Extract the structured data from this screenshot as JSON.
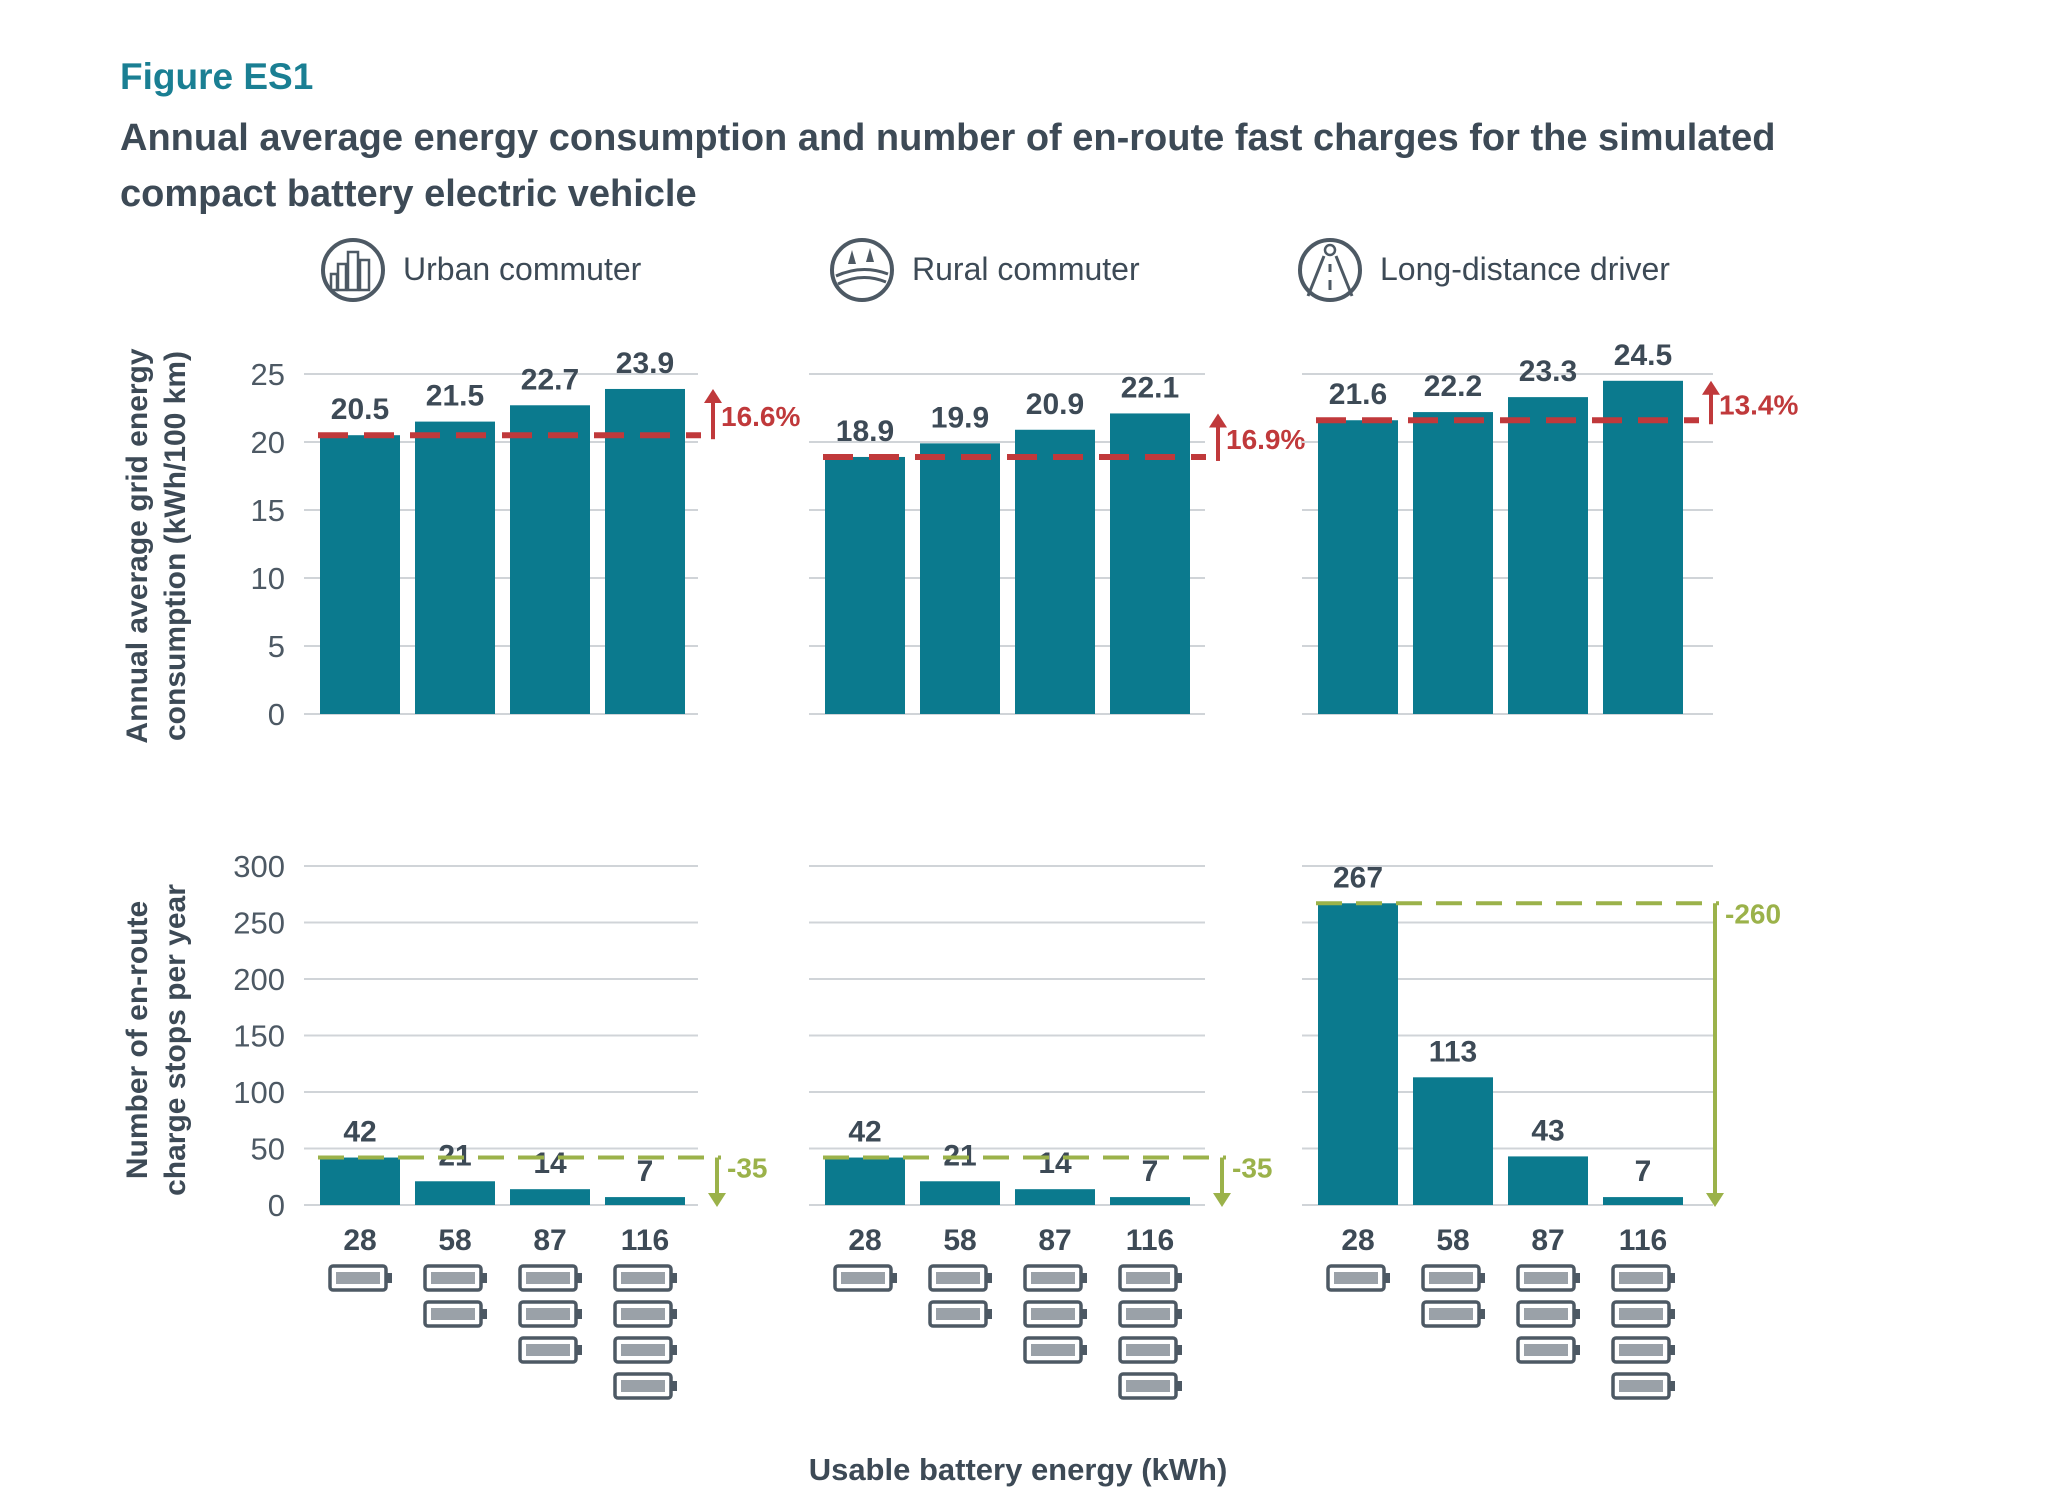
{
  "figure_label": "Figure ES1",
  "title": "Annual average energy consumption and number of en-route fast charges for the simulated compact battery electric vehicle",
  "colors": {
    "bar": "#0b7a8e",
    "label": "#3d4a56",
    "axis": "#4d5964",
    "grid": "#d0d4d8",
    "avg_line": "#c0393b",
    "delta_line": "#9bb24a",
    "battery": "#4d5964"
  },
  "chart_data": {
    "type": "bar",
    "xlabel": "Usable battery energy (kWh)",
    "categories": [
      "28",
      "58",
      "87",
      "116"
    ],
    "battery_icon_counts": [
      1,
      2,
      3,
      4
    ],
    "panel_titles": [
      "Urban commuter",
      "Rural commuter",
      "Long-distance driver"
    ],
    "panel_icons": [
      "city-buildings-icon",
      "rural-landscape-icon",
      "highway-road-icon"
    ],
    "energy": {
      "ylabel_lines": [
        "Annual average grid energy",
        "consumption (kWh/100 km)"
      ],
      "ylim": [
        0,
        25
      ],
      "ticks": [
        "0",
        "5",
        "10",
        "15",
        "20",
        "25"
      ],
      "series": [
        {
          "name": "Urban commuter",
          "values": [
            20.5,
            21.5,
            22.7,
            23.9
          ],
          "labels": [
            "20.5",
            "21.5",
            "22.7",
            "23.9"
          ],
          "change_label": "16.6%"
        },
        {
          "name": "Rural commuter",
          "values": [
            18.9,
            19.9,
            20.9,
            22.1
          ],
          "labels": [
            "18.9",
            "19.9",
            "20.9",
            "22.1"
          ],
          "change_label": "16.9%"
        },
        {
          "name": "Long-distance driver",
          "values": [
            21.6,
            22.2,
            23.3,
            24.5
          ],
          "labels": [
            "21.6",
            "22.2",
            "23.3",
            "24.5"
          ],
          "change_label": "13.4%"
        }
      ]
    },
    "charges": {
      "ylabel_lines": [
        "Number of en-route",
        "charge stops per year"
      ],
      "ylim": [
        0,
        300
      ],
      "ticks": [
        "0",
        "50",
        "100",
        "150",
        "200",
        "250",
        "300"
      ],
      "series": [
        {
          "name": "Urban commuter",
          "values": [
            42,
            21,
            14,
            7
          ],
          "labels": [
            "42",
            "21",
            "14",
            "7"
          ],
          "change_label": "-35"
        },
        {
          "name": "Rural commuter",
          "values": [
            42,
            21,
            14,
            7
          ],
          "labels": [
            "42",
            "21",
            "14",
            "7"
          ],
          "change_label": "-35"
        },
        {
          "name": "Long-distance driver",
          "values": [
            267,
            113,
            43,
            7
          ],
          "labels": [
            "267",
            "113",
            "43",
            "7"
          ],
          "change_label": "-260"
        }
      ]
    }
  }
}
